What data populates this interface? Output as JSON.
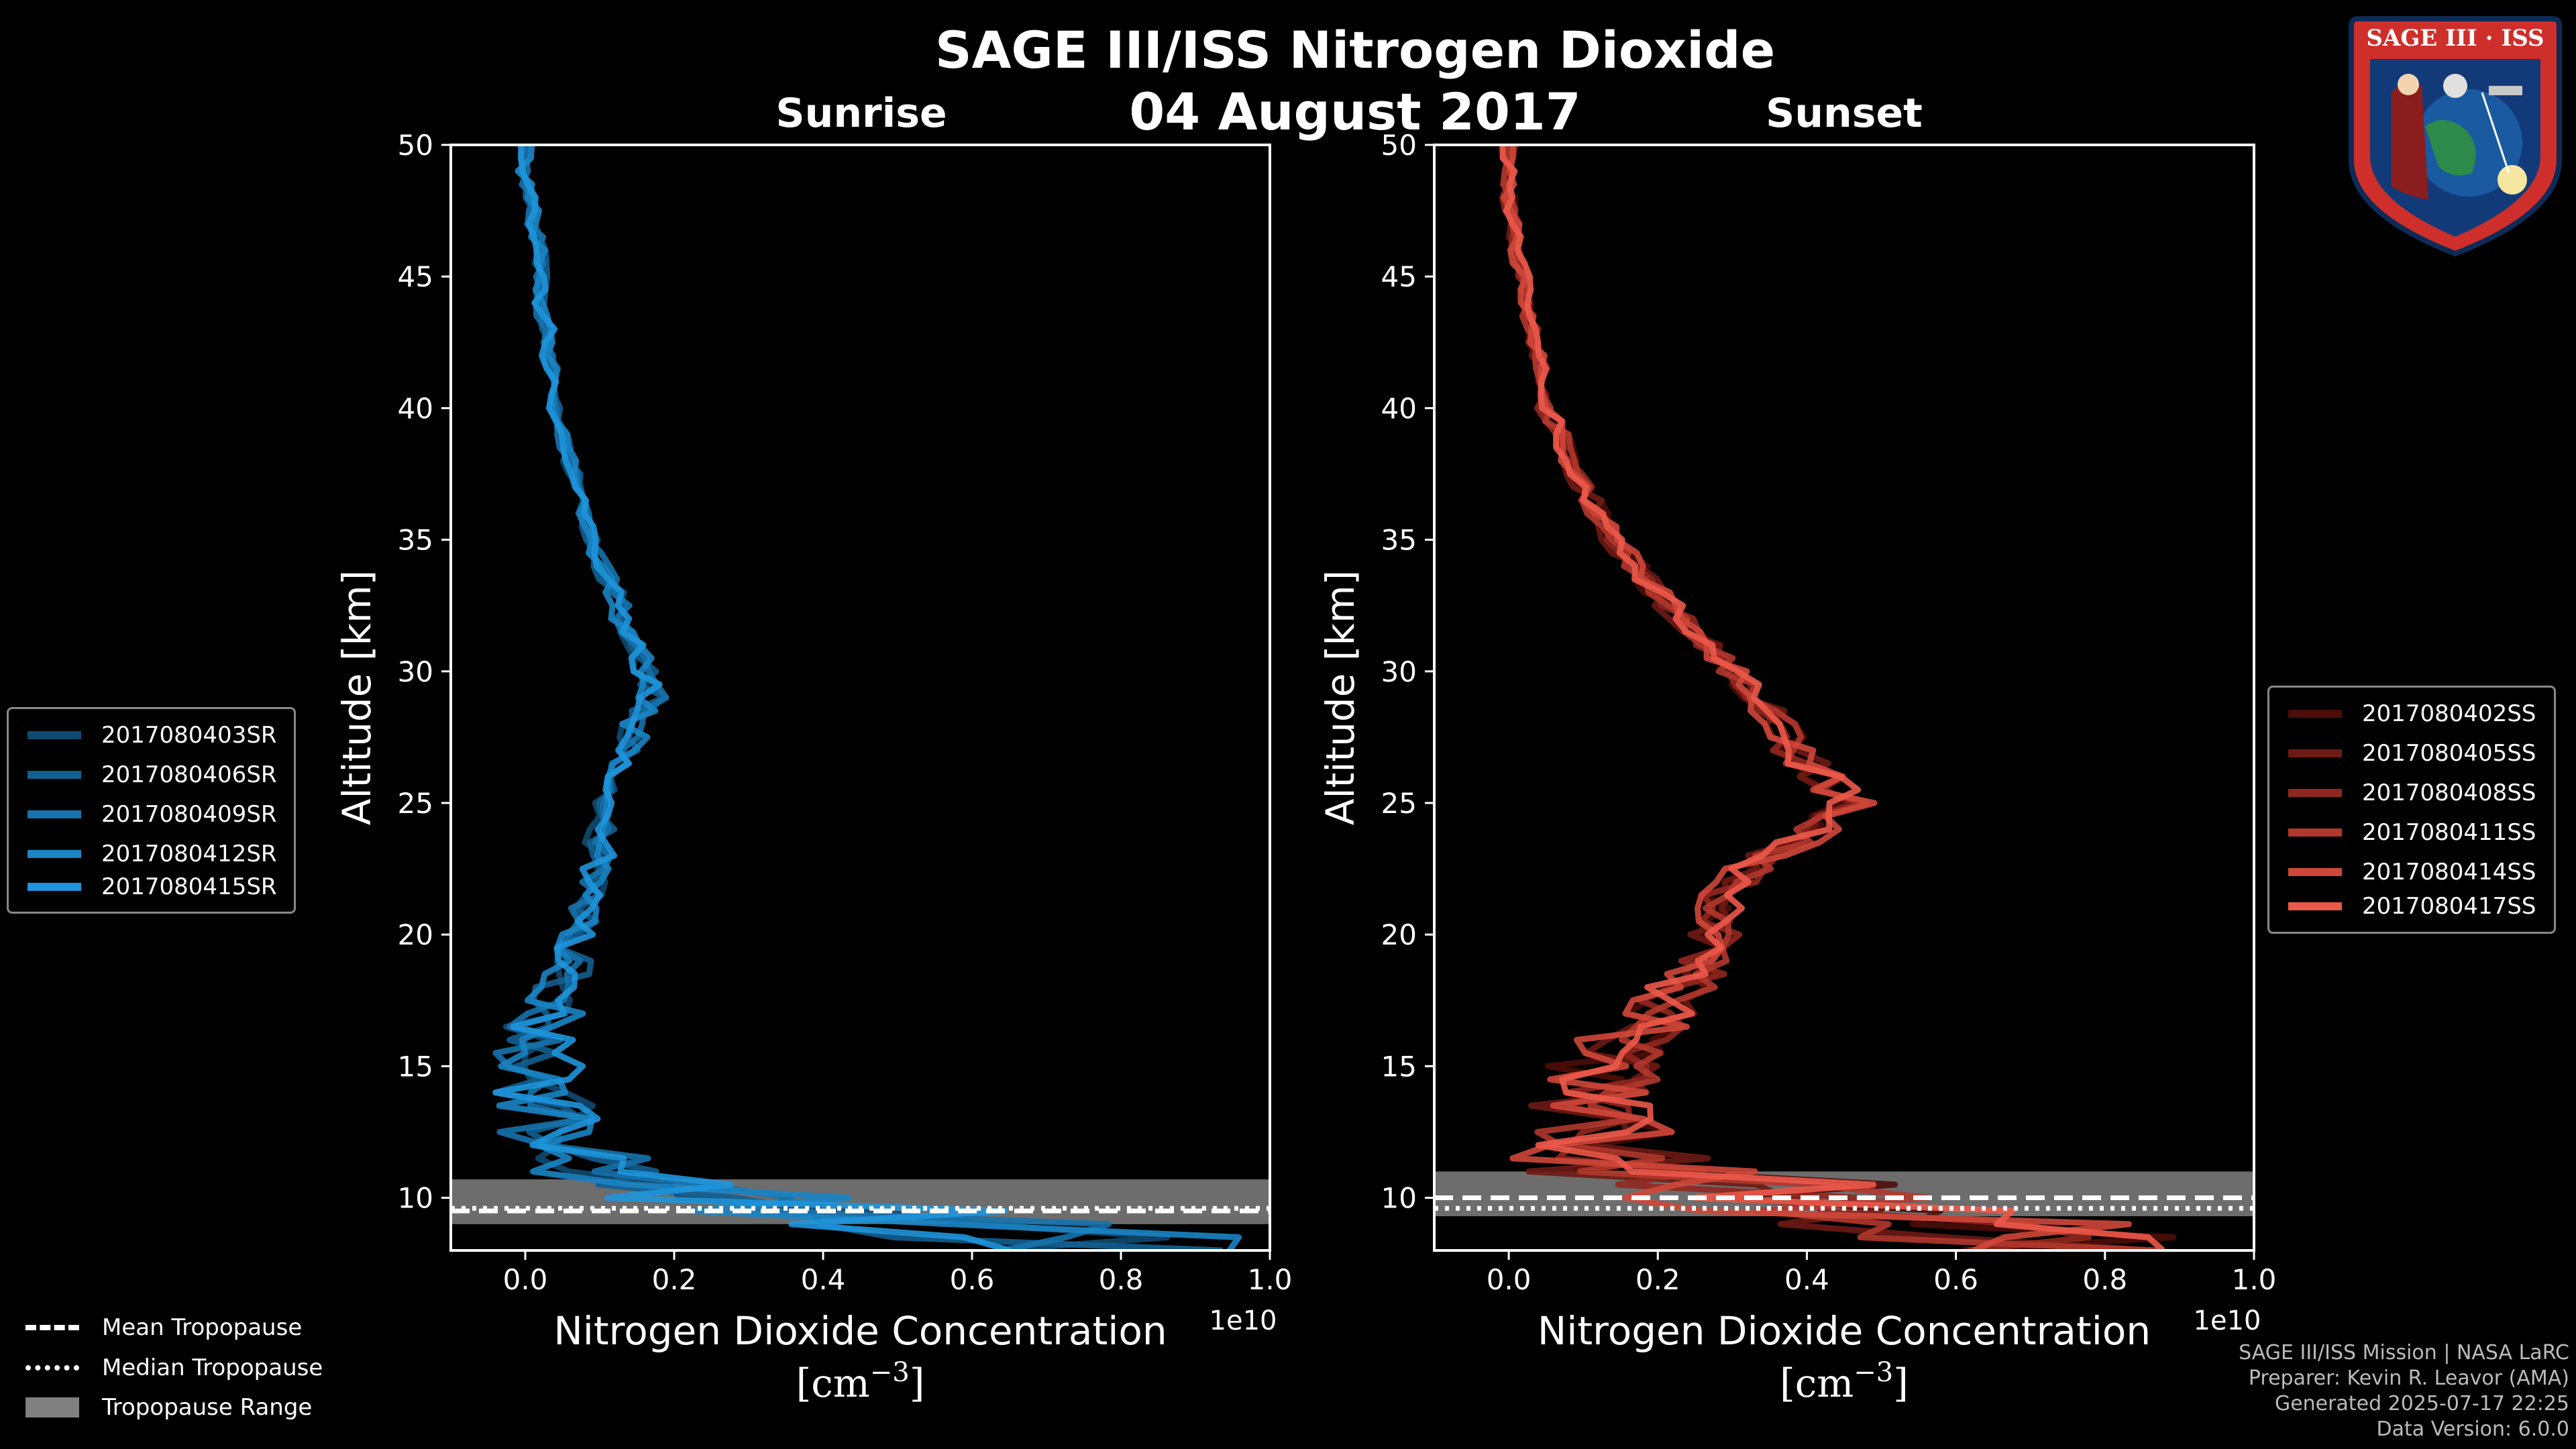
{
  "title": "SAGE III/ISS Nitrogen Dioxide",
  "date": "04 August 2017",
  "logo_text": "SAGE III · ISS",
  "colors": {
    "sunrise": "#1e90d6",
    "sunset": "#e8574a",
    "tropo_range": "#808080"
  },
  "chart_data": [
    {
      "type": "line",
      "title": "Sunrise",
      "xlabel": "Nitrogen Dioxide Concentration",
      "xunit": "[cm^-3]",
      "ylabel": "Altitude [km]",
      "offset_text": "1e10",
      "xlim": [
        -0.1,
        1.0
      ],
      "ylim": [
        8,
        50
      ],
      "xticks": [
        "0.0",
        "0.2",
        "0.4",
        "0.6",
        "0.8",
        "1.0"
      ],
      "yticks": [
        "10",
        "15",
        "20",
        "25",
        "30",
        "35",
        "40",
        "45",
        "50"
      ],
      "series": [
        {
          "name": "2017080403SR",
          "color": "#0f4a70",
          "seed": 3
        },
        {
          "name": "2017080406SR",
          "color": "#135f90",
          "seed": 6
        },
        {
          "name": "2017080409SR",
          "color": "#1672ac",
          "seed": 9
        },
        {
          "name": "2017080412SR",
          "color": "#1a84c4",
          "seed": 12
        },
        {
          "name": "2017080415SR",
          "color": "#1e95dc",
          "seed": 15
        }
      ],
      "profile": {
        "alt": [
          8,
          9,
          10,
          10.6,
          11,
          12,
          13,
          14,
          15,
          16,
          17,
          18,
          19,
          20,
          21,
          22,
          23,
          24,
          25,
          26,
          27,
          28,
          29,
          30,
          31,
          32,
          33,
          34,
          35,
          36,
          37,
          38,
          39,
          40,
          41,
          42,
          43,
          44,
          45,
          46,
          47,
          48,
          49,
          50
        ],
        "x": [
          0.9,
          0.55,
          0.28,
          0.18,
          0.1,
          0.05,
          0.03,
          0.02,
          0.02,
          0.02,
          0.03,
          0.05,
          0.06,
          0.07,
          0.08,
          0.09,
          0.1,
          0.1,
          0.11,
          0.12,
          0.14,
          0.15,
          0.17,
          0.16,
          0.15,
          0.13,
          0.12,
          0.1,
          0.09,
          0.08,
          0.07,
          0.06,
          0.05,
          0.04,
          0.04,
          0.03,
          0.03,
          0.02,
          0.02,
          0.02,
          0.01,
          0.01,
          0.0,
          0.0
        ],
        "noise": [
          0.3,
          0.3,
          0.2,
          0.1,
          0.1,
          0.08,
          0.08,
          0.07,
          0.06,
          0.06,
          0.05,
          0.04,
          0.03,
          0.025,
          0.02,
          0.02,
          0.02,
          0.02,
          0.02,
          0.02,
          0.02,
          0.02,
          0.02,
          0.02,
          0.015,
          0.015,
          0.015,
          0.015,
          0.01,
          0.01,
          0.01,
          0.01,
          0.01,
          0.01,
          0.01,
          0.01,
          0.01,
          0.01,
          0.01,
          0.01,
          0.01,
          0.01,
          0.01,
          0.01
        ]
      },
      "tropopause": {
        "mean": 9.5,
        "median": 9.6,
        "range": [
          9.0,
          10.7
        ]
      }
    },
    {
      "type": "line",
      "title": "Sunset",
      "xlabel": "Nitrogen Dioxide Concentration",
      "xunit": "[cm^-3]",
      "ylabel": "Altitude [km]",
      "offset_text": "1e10",
      "xlim": [
        -0.1,
        1.0
      ],
      "ylim": [
        8,
        50
      ],
      "xticks": [
        "0.0",
        "0.2",
        "0.4",
        "0.6",
        "0.8",
        "1.0"
      ],
      "yticks": [
        "10",
        "15",
        "20",
        "25",
        "30",
        "35",
        "40",
        "45",
        "50"
      ],
      "series": [
        {
          "name": "2017080402SS",
          "color": "#4d0d09",
          "seed": 2
        },
        {
          "name": "2017080405SS",
          "color": "#6e1a14",
          "seed": 5
        },
        {
          "name": "2017080408SS",
          "color": "#90271f",
          "seed": 8
        },
        {
          "name": "2017080411SS",
          "color": "#b2372c",
          "seed": 11
        },
        {
          "name": "2017080414SS",
          "color": "#cf473a",
          "seed": 14
        },
        {
          "name": "2017080417SS",
          "color": "#ec594a",
          "seed": 17
        }
      ],
      "profile": {
        "alt": [
          8,
          9,
          10,
          11,
          12,
          13,
          14,
          15,
          16,
          17,
          18,
          19,
          20,
          21,
          22,
          23,
          24,
          25,
          26,
          27,
          28,
          29,
          30,
          31,
          32,
          33,
          34,
          35,
          36,
          37,
          38,
          39,
          40,
          41,
          42,
          43,
          44,
          45,
          46,
          47,
          48,
          49,
          50
        ],
        "x": [
          0.75,
          0.6,
          0.4,
          0.22,
          0.12,
          0.1,
          0.11,
          0.13,
          0.16,
          0.2,
          0.23,
          0.26,
          0.27,
          0.28,
          0.3,
          0.35,
          0.42,
          0.46,
          0.42,
          0.38,
          0.36,
          0.33,
          0.3,
          0.27,
          0.23,
          0.2,
          0.17,
          0.14,
          0.12,
          0.1,
          0.08,
          0.07,
          0.05,
          0.05,
          0.04,
          0.03,
          0.02,
          0.02,
          0.01,
          0.01,
          0.0,
          0.0,
          0.0
        ],
        "noise": [
          0.25,
          0.25,
          0.25,
          0.2,
          0.14,
          0.1,
          0.08,
          0.08,
          0.07,
          0.06,
          0.05,
          0.04,
          0.04,
          0.035,
          0.035,
          0.035,
          0.035,
          0.035,
          0.03,
          0.03,
          0.03,
          0.025,
          0.025,
          0.02,
          0.02,
          0.02,
          0.018,
          0.016,
          0.015,
          0.014,
          0.013,
          0.012,
          0.012,
          0.012,
          0.01,
          0.01,
          0.01,
          0.01,
          0.01,
          0.01,
          0.01,
          0.01,
          0.01
        ]
      },
      "tropopause": {
        "mean": 10.0,
        "median": 9.6,
        "range": [
          9.3,
          11.0
        ]
      }
    }
  ],
  "tropopause_legend": {
    "mean": "Mean Tropopause",
    "median": "Median Tropopause",
    "range": "Tropopause Range"
  },
  "footer": {
    "line1": "SAGE III/ISS Mission | NASA LaRC",
    "line2": "Preparer: Kevin R. Leavor (AMA)",
    "line3": "Generated 2025-07-17 22:25",
    "line4": "Data Version: 6.0.0"
  }
}
